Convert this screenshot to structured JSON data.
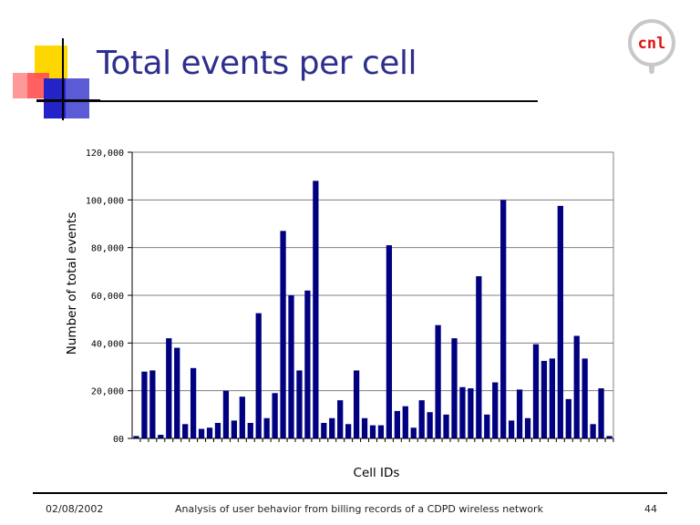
{
  "slide": {
    "title": "Total events per cell",
    "logo_text": "cnl",
    "footer": {
      "date": "02/08/2002",
      "caption": "Analysis of user behavior from billing records of a CDPD wireless network",
      "page_number": "44"
    }
  },
  "colors": {
    "title": "#2e2e8e",
    "bar": "#000080",
    "logo_text": "#e01010",
    "logo_ring": "#c0c0c0",
    "deco_yellow": "#ffd700",
    "deco_red": "#ff4040",
    "deco_blue": "#2020c0"
  },
  "chart_data": {
    "type": "bar",
    "title": "",
    "xlabel": "Cell IDs",
    "ylabel": "Number of total events",
    "ylim": [
      0,
      120000
    ],
    "yticks": [
      0,
      20000,
      40000,
      60000,
      80000,
      100000,
      120000
    ],
    "ytick_labels": [
      "00",
      "20,000",
      "40,000",
      "60,000",
      "80,000",
      "100,000",
      "120,000"
    ],
    "grid": true,
    "values": [
      1000,
      28000,
      28500,
      1500,
      42000,
      38000,
      6000,
      29500,
      4000,
      4500,
      6500,
      20000,
      7500,
      17500,
      6500,
      52500,
      8500,
      19000,
      87000,
      60000,
      28500,
      62000,
      108000,
      6500,
      8500,
      16000,
      6000,
      28500,
      8500,
      5500,
      5500,
      81000,
      11500,
      13500,
      4500,
      16000,
      11000,
      47500,
      10000,
      42000,
      21500,
      21000,
      68000,
      10000,
      23500,
      100000,
      7500,
      20500,
      8500,
      39500,
      32500,
      33500,
      97500,
      16500,
      43000,
      33500,
      6000,
      21000,
      1000
    ]
  }
}
